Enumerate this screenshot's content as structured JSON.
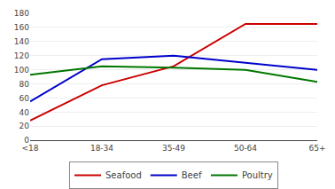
{
  "chart_data": {
    "type": "line",
    "categories": [
      "<18",
      "18-34",
      "35-49",
      "50-64",
      "65+"
    ],
    "series": [
      {
        "name": "Seafood",
        "color": "#cc0000",
        "values": [
          28,
          78,
          105,
          165,
          165
        ]
      },
      {
        "name": "Beef",
        "color": "#0000cc",
        "values": [
          55,
          115,
          120,
          110,
          100
        ]
      },
      {
        "name": "Poultry",
        "color": "#007700",
        "values": [
          93,
          105,
          103,
          100,
          83
        ]
      }
    ],
    "ylim": [
      0,
      180
    ],
    "yticks": [
      0,
      20,
      40,
      60,
      80,
      100,
      120,
      140,
      160,
      180
    ],
    "grid": true,
    "legend": "bottom"
  }
}
